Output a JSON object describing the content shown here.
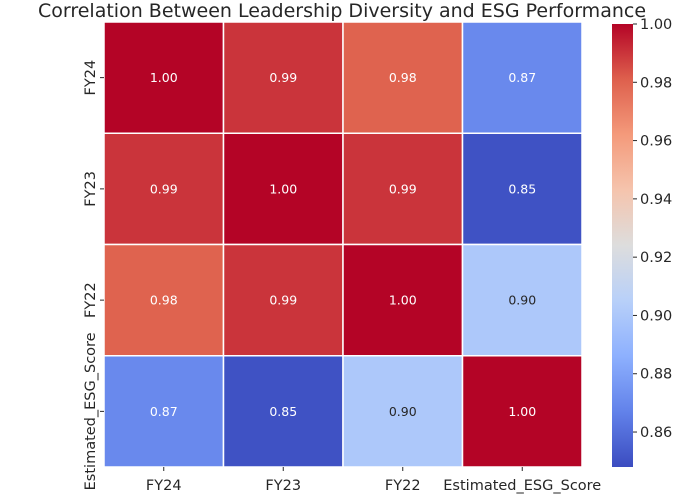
{
  "chart_data": {
    "type": "heatmap",
    "title": "Correlation Between Leadership Diversity and ESG Performance",
    "x_categories": [
      "FY24",
      "FY23",
      "FY22",
      "Estimated_ESG_Score"
    ],
    "y_categories": [
      "FY24",
      "FY23",
      "FY22",
      "Estimated_ESG_Score"
    ],
    "values": [
      [
        1.0,
        0.99,
        0.98,
        0.87
      ],
      [
        0.99,
        1.0,
        0.99,
        0.85
      ],
      [
        0.98,
        0.99,
        1.0,
        0.9
      ],
      [
        0.87,
        0.85,
        0.9,
        1.0
      ]
    ],
    "value_format": "0.00",
    "colormap": "coolwarm",
    "color_range": [
      0.848,
      1.0
    ],
    "colorbar": {
      "ticks": [
        0.86,
        0.88,
        0.9,
        0.92,
        0.94,
        0.96,
        0.98,
        1.0
      ],
      "tick_labels": [
        "0.86",
        "0.88",
        "0.90",
        "0.92",
        "0.94",
        "0.96",
        "0.98",
        "1.00"
      ]
    },
    "cell_border_color": "#ffffff"
  }
}
